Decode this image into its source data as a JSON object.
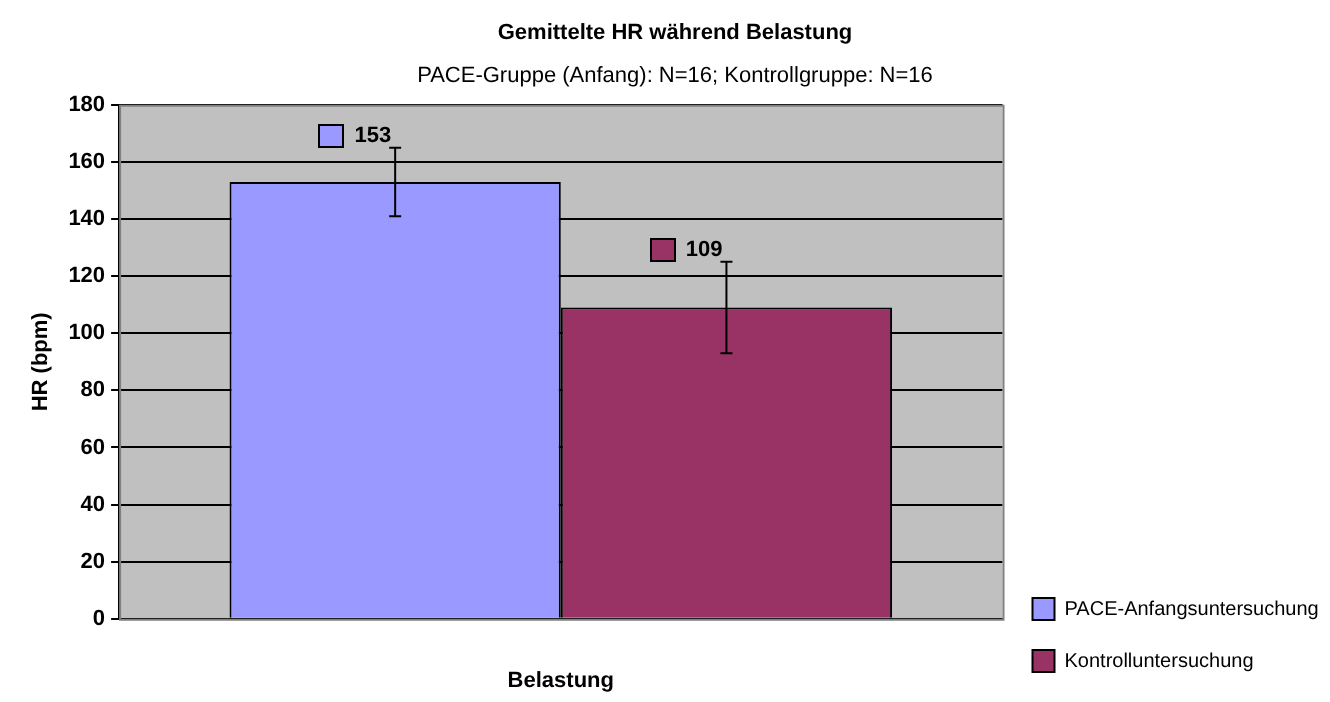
{
  "chart_data": {
    "type": "bar",
    "title": "Gemittelte HR während Belastung",
    "subtitle": "PACE-Gruppe (Anfang): N=16; Kontrollgruppe: N=16",
    "xlabel": "Belastung",
    "ylabel": "HR (bpm)",
    "categories": [
      null
    ],
    "series": [
      {
        "name": "PACE-Anfangsuntersuchung",
        "color": "#9999ff",
        "values": [
          153
        ],
        "errors": [
          12
        ]
      },
      {
        "name": "Kontrolluntersuchung",
        "color": "#993366",
        "values": [
          109
        ],
        "errors": [
          16
        ]
      }
    ],
    "ylim": [
      0,
      180
    ],
    "yticks": [
      0,
      20,
      40,
      60,
      80,
      100,
      120,
      140,
      160,
      180
    ],
    "grid": "y",
    "legend": "bottom right",
    "data_labels": true
  }
}
